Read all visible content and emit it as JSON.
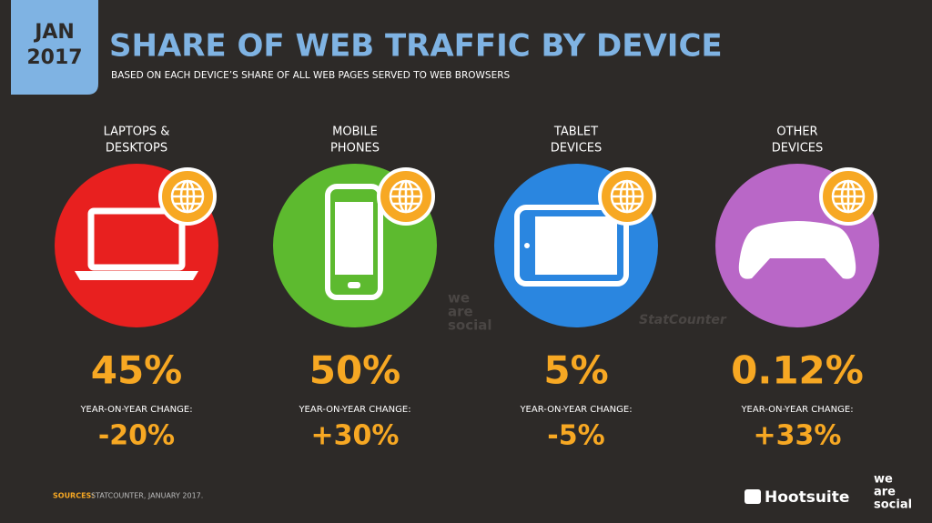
{
  "header": {
    "month": "JAN",
    "year": "2017",
    "title": "SHARE OF WEB TRAFFIC BY DEVICE",
    "subtitle": "BASED ON EACH DEVICE’S SHARE OF ALL WEB PAGES SERVED TO WEB BROWSERS"
  },
  "devices": [
    {
      "label": [
        "LAPTOPS &",
        "DESKTOPS"
      ],
      "share": "45%",
      "change_label": "YEAR-ON-YEAR CHANGE:",
      "change": "-20%"
    },
    {
      "label": [
        "MOBILE",
        "PHONES"
      ],
      "share": "50%",
      "change_label": "YEAR-ON-YEAR CHANGE:",
      "change": "+30%"
    },
    {
      "label": [
        "TABLET",
        "DEVICES"
      ],
      "share": "5%",
      "change_label": "YEAR-ON-YEAR CHANGE:",
      "change": "-5%"
    },
    {
      "label": [
        "OTHER",
        "DEVICES"
      ],
      "share": "0.12%",
      "change_label": "YEAR-ON-YEAR CHANGE:",
      "change": "+33%"
    }
  ],
  "watermarks": {
    "social": [
      "we",
      "are",
      "social"
    ],
    "statcounter": "StatCounter"
  },
  "footer": {
    "source_key": "SOURCES:",
    "source": "STATCOUNTER, JANUARY 2017.",
    "hootsuite": "Hootsuite",
    "social": [
      "we",
      "are",
      "social"
    ]
  }
}
